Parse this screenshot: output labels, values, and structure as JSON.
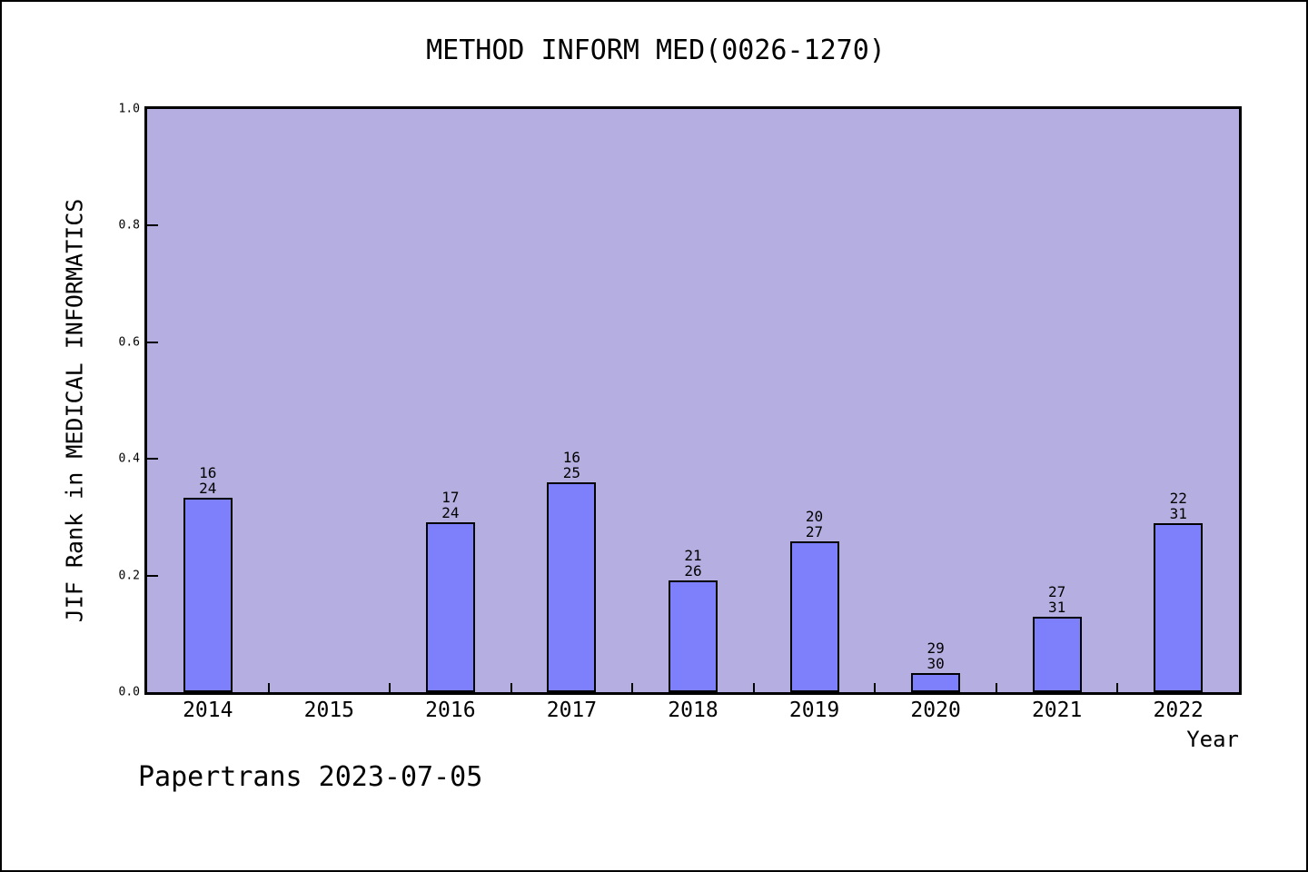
{
  "footer": "Papertrans 2023-07-05",
  "chart_data": {
    "type": "bar",
    "title": "METHOD INFORM MED(0026-1270)",
    "xlabel": "Year",
    "ylabel": "JIF Rank in MEDICAL INFORMATICS",
    "ylim": [
      0.0,
      1.0
    ],
    "yticks": [
      "0.0",
      "0.2",
      "0.4",
      "0.6",
      "0.8",
      "1.0"
    ],
    "grid": false,
    "legend": "none",
    "categories": [
      "2014",
      "2015",
      "2016",
      "2017",
      "2018",
      "2019",
      "2020",
      "2021",
      "2022"
    ],
    "bars": [
      {
        "year": "2014",
        "rank": 16,
        "total": 24,
        "value": 0.3333
      },
      {
        "year": "2015",
        "rank": null,
        "total": null,
        "value": null
      },
      {
        "year": "2016",
        "rank": 17,
        "total": 24,
        "value": 0.2917
      },
      {
        "year": "2017",
        "rank": 16,
        "total": 25,
        "value": 0.36
      },
      {
        "year": "2018",
        "rank": 21,
        "total": 26,
        "value": 0.1923
      },
      {
        "year": "2019",
        "rank": 20,
        "total": 27,
        "value": 0.2593
      },
      {
        "year": "2020",
        "rank": 29,
        "total": 30,
        "value": 0.0333
      },
      {
        "year": "2021",
        "rank": 27,
        "total": 31,
        "value": 0.129
      },
      {
        "year": "2022",
        "rank": 22,
        "total": 31,
        "value": 0.2903
      }
    ],
    "colors": {
      "plot_background": "#b5aee0",
      "bar_fill": "#7d80fa",
      "bar_border": "#000000",
      "text": "#000000"
    }
  }
}
